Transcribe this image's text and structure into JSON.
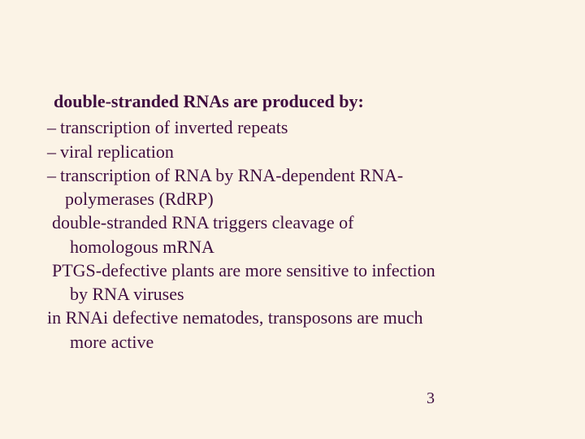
{
  "colors": {
    "background": "#fbf3e6",
    "text": "#3f0d3f"
  },
  "typography": {
    "family": "Times New Roman",
    "body_size_pt": 22,
    "heading_weight": "bold"
  },
  "heading": "double-stranded RNAs are produced by:",
  "bullets": [
    {
      "dash": "–",
      "text": "transcription of inverted repeats"
    },
    {
      "dash": "–",
      "text": "viral replication"
    },
    {
      "dash": "–",
      "text": "transcription of RNA by RNA-dependent RNA-"
    }
  ],
  "bullet3_cont": "polymerases (RdRP)",
  "para1_line1": "double-stranded RNA triggers cleavage of",
  "para1_line2": "homologous mRNA",
  "para2_line1": "PTGS-defective plants are more sensitive to infection",
  "para2_line2": "by RNA viruses",
  "para3_line1": "in RNAi defective nematodes, transposons are much",
  "para3_line2": "more active",
  "page_number": "3"
}
